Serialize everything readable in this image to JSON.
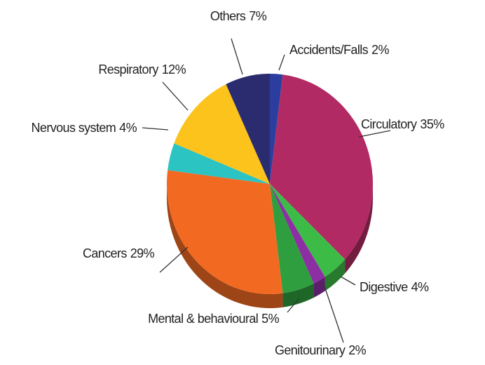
{
  "chart_data": {
    "type": "pie",
    "categories": [
      "Accidents/Falls",
      "Circulatory",
      "Digestive",
      "Genitourinary",
      "Mental & behavioural",
      "Cancers",
      "Nervous system",
      "Respiratory",
      "Others"
    ],
    "values": [
      2,
      35,
      4,
      2,
      5,
      29,
      4,
      12,
      7
    ],
    "value_labels": [
      "2%",
      "35%",
      "4%",
      "2%",
      "5%",
      "29%",
      "4%",
      "12%",
      "7%"
    ],
    "colors": [
      "#2b3ea0",
      "#b22a63",
      "#3dbb47",
      "#8c2fa3",
      "#2f9e3e",
      "#f26a22",
      "#2cc3c3",
      "#fbc31c",
      "#2b2c6f"
    ]
  }
}
